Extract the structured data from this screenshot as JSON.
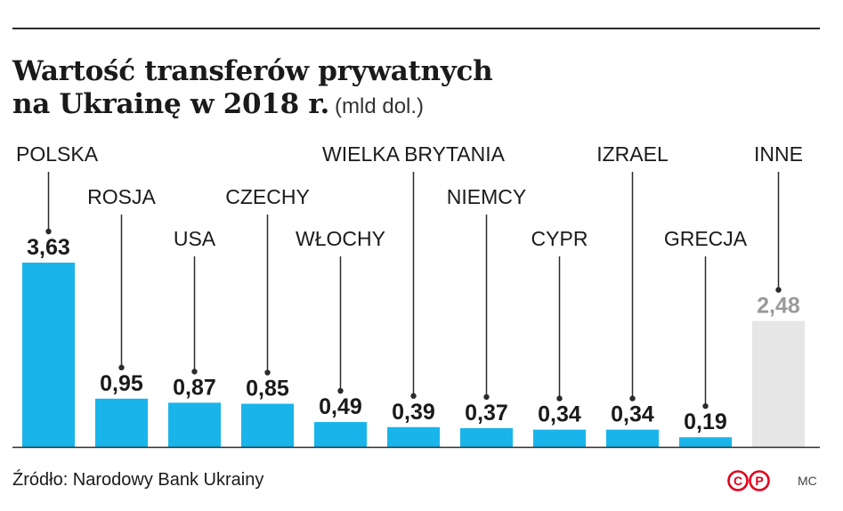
{
  "title": {
    "line1": "Wartość transferów prywatnych",
    "line2": "na Ukrainę w 2018 r.",
    "unit": "(mld dol.)"
  },
  "chart_data": {
    "type": "bar",
    "categories": [
      "POLSKA",
      "ROSJA",
      "USA",
      "CZECHY",
      "WŁOCHY",
      "WIELKA BRYTANIA",
      "NIEMCY",
      "CYPR",
      "IZRAEL",
      "GRECJA",
      "INNE"
    ],
    "values": [
      3.63,
      0.95,
      0.87,
      0.85,
      0.49,
      0.39,
      0.37,
      0.34,
      0.34,
      0.19,
      2.48
    ],
    "value_labels": [
      "3,63",
      "0,95",
      "0,87",
      "0,85",
      "0,49",
      "0,39",
      "0,37",
      "0,34",
      "0,34",
      "0,19",
      "2,48"
    ],
    "unit": "mld dol.",
    "ylim": [
      0,
      3.63
    ],
    "grid": false,
    "colors": {
      "bar": "#19b5ea",
      "bar_other": "#e6e6e6",
      "label_other": "#9a9a9a",
      "text": "#1a1a1a",
      "axis": "#2b2b2b"
    }
  },
  "footer": {
    "source": "Źródło: Narodowy Bank Ukrainy",
    "logo_letters": [
      "C",
      "P"
    ],
    "logo_color": "#e2001a",
    "author": "MC"
  }
}
